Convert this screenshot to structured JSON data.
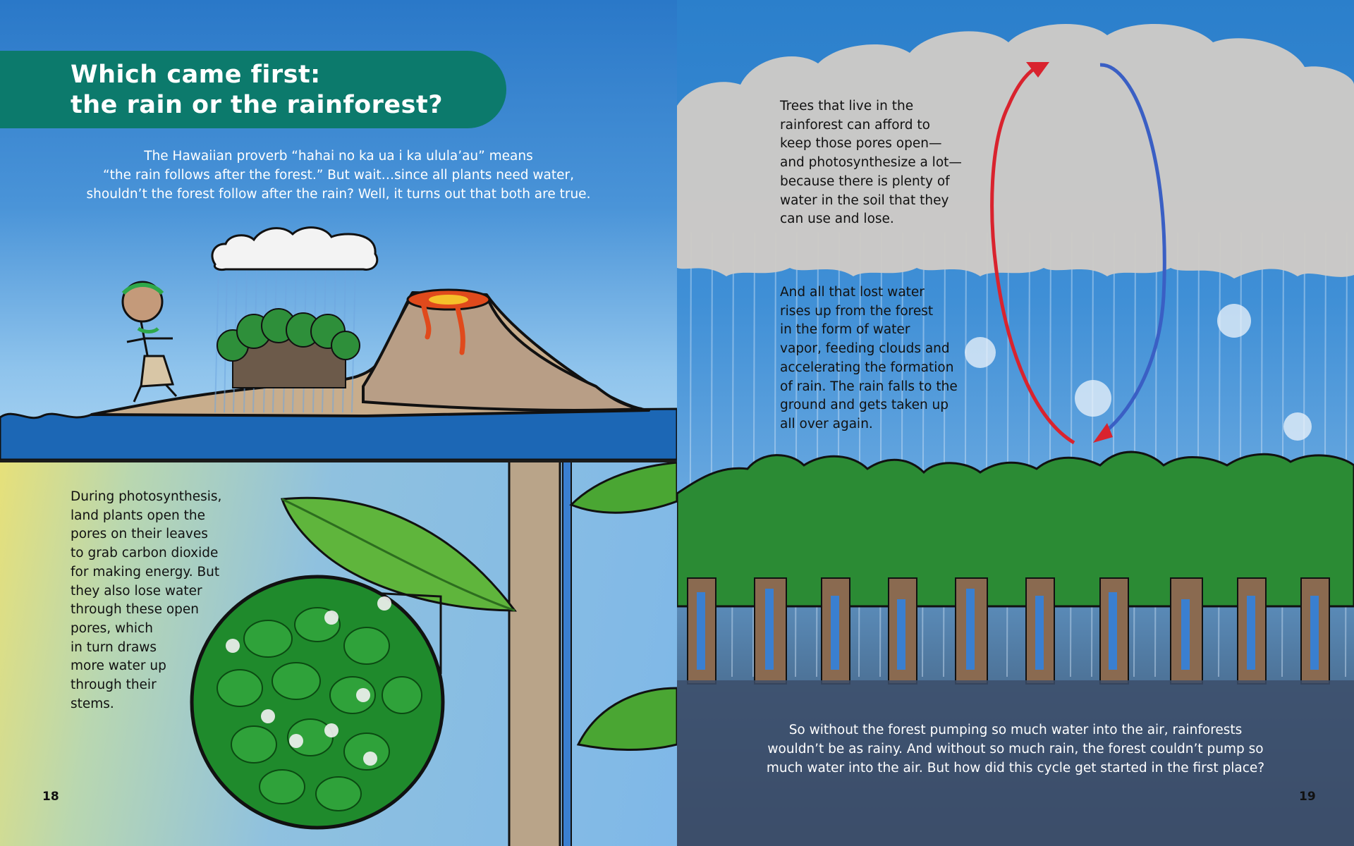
{
  "title": {
    "line1": "Which came first:",
    "line2": "the rain or the rainforest?"
  },
  "intro": {
    "lines": [
      "The Hawaiian proverb “hahai no ka ua i ka ulula’au” means",
      "“the rain follows after the forest.” But wait…since all plants need water,",
      "shouldn’t the forest follow after the rain? Well, it turns out that both are true."
    ]
  },
  "photosynthesis": {
    "lines": [
      "During photosynthesis,",
      "land plants open the",
      "pores on their leaves",
      "to grab carbon dioxide",
      "for making energy. But",
      "they also lose water",
      "through these open",
      "pores, which",
      "in turn draws",
      "more water up",
      "through their",
      "stems."
    ]
  },
  "trees": {
    "lines": [
      "Trees that live in the",
      "rainforest can afford to",
      "keep those pores open—",
      "and photosynthesize a lot—",
      "because there is plenty of",
      "water in the soil that they",
      "can use and lose."
    ]
  },
  "vapor": {
    "lines": [
      "And all that lost water",
      "rises up from the forest",
      "in the form of water",
      "vapor, feeding clouds and",
      "accelerating the formation",
      "of rain. The rain falls to the",
      "ground and gets taken up",
      "all over again."
    ]
  },
  "closing": {
    "lines": [
      "So without the forest pumping so much water into the air, rainforests",
      "wouldn’t be as rainy. And without so much rain, the forest couldn’t pump so",
      "much water into the air. But how did this cycle get started in the first place?"
    ]
  },
  "page_numbers": {
    "left": "18",
    "right": "19"
  },
  "colors": {
    "banner": "#0c7a6c",
    "sky": "#2a78c8",
    "ocean": "#1c67b5",
    "leaf_green": "#2e8f3a",
    "arrow_red": "#d9232e",
    "arrow_blue": "#3a5fc4"
  }
}
